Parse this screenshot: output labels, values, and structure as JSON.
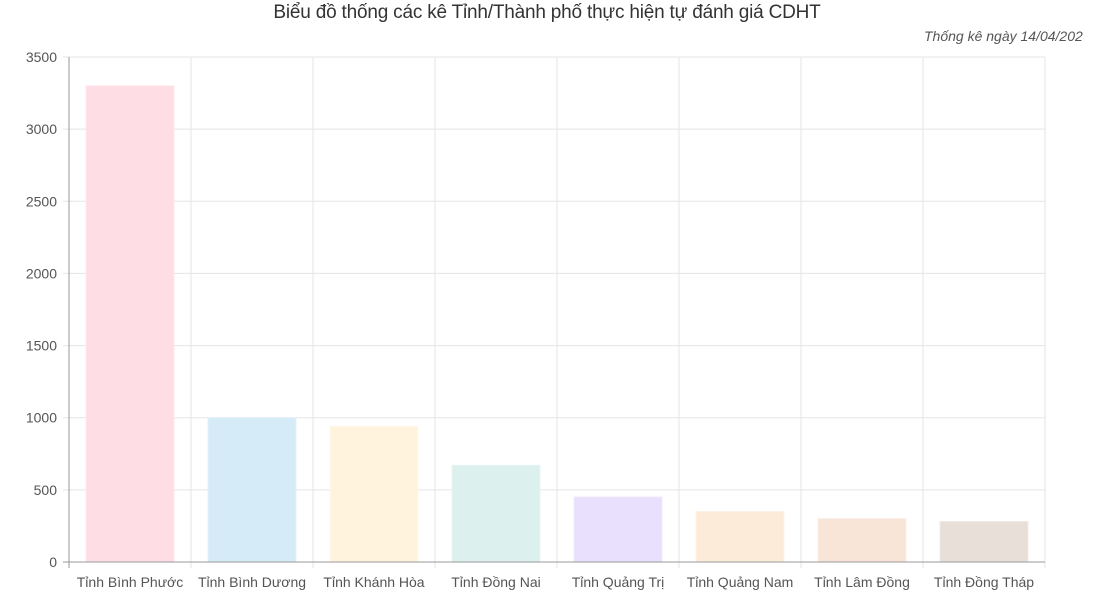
{
  "title": "Biểu đồ thống các kê Tỉnh/Thành phố thực hiện tự đánh giá CDHT",
  "subtitle": "Thống kê ngày 14/04/202",
  "chart_data": {
    "type": "bar",
    "categories": [
      "Tỉnh Bình Phước",
      "Tỉnh Bình Dương",
      "Tỉnh Khánh Hòa",
      "Tỉnh Đồng Nai",
      "Tỉnh Quảng Trị",
      "Tỉnh Quảng Nam",
      "Tỉnh Lâm Đồng",
      "Tỉnh Đồng Tháp"
    ],
    "values": [
      3300,
      1000,
      940,
      670,
      450,
      350,
      300,
      280
    ],
    "ylim": [
      0,
      3500
    ],
    "yticks": [
      0,
      500,
      1000,
      1500,
      2000,
      2500,
      3000,
      3500
    ],
    "grid": true,
    "legend": "none",
    "bar_colors": [
      "#ffdde4",
      "#d6ebf8",
      "#fff3de",
      "#dcf0ee",
      "#e8e0fc",
      "#fdebda",
      "#f8e5d8",
      "#e8dfd8"
    ],
    "bar_border_colors": [
      "#ffe6ec",
      "#e0f0fb",
      "#fff7e8",
      "#e6f5f3",
      "#eee8fd",
      "#fdf1e6",
      "#fbece2",
      "#efe8e2"
    ]
  }
}
